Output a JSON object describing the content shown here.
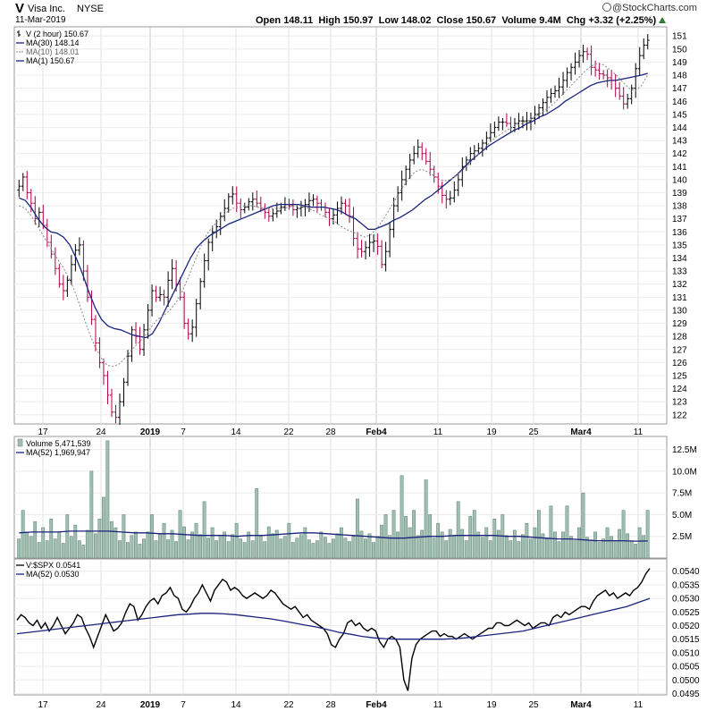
{
  "header": {
    "symbol": "V",
    "company": "Visa Inc.",
    "exchange": "NYSE",
    "date": "11-Mar-2019",
    "copyright": "@StockCharts.com",
    "open_label": "Open",
    "open": "148.11",
    "high_label": "High",
    "high": "150.97",
    "low_label": "Low",
    "low": "148.02",
    "close_label": "Close",
    "close": "150.67",
    "volume_label": "Volume",
    "volume": "9.4M",
    "chg_label": "Chg",
    "chg": "+3.32 (+2.25%)"
  },
  "colors": {
    "up": "#000000",
    "down": "#b0004a",
    "ma_main": "#1a237e",
    "ma_fast": "#888888",
    "volume_bar": "#9fbfb1",
    "volume_edge": "#5f7f72"
  },
  "chart_data": [
    {
      "type": "line",
      "panel": "price",
      "legend": [
        {
          "text": "V (2 hour) 150.67",
          "swatch": "candle"
        },
        {
          "text": "MA(30) 148.14",
          "swatch": "line-blue"
        },
        {
          "text": "MA(10) 148.01",
          "swatch": "dotted-gray"
        },
        {
          "text": "MA(1) 150.67",
          "swatch": "line-blue"
        }
      ],
      "x_tick_labels": [
        "17",
        "24",
        "2019",
        "7",
        "14",
        "22",
        "28",
        "Feb4",
        "11",
        "19",
        "25",
        "Mar4",
        "11"
      ],
      "y_tick_labels": [
        "151",
        "150",
        "149",
        "148",
        "147",
        "146",
        "145",
        "144",
        "143",
        "142",
        "141",
        "140",
        "139",
        "138",
        "137",
        "136",
        "135",
        "134",
        "133",
        "132",
        "131",
        "130",
        "129",
        "128",
        "127",
        "126",
        "125",
        "124",
        "123",
        "122"
      ],
      "ylim": [
        121.3,
        151.7
      ],
      "close_series": [
        139.5,
        140.2,
        139.0,
        138.2,
        137.0,
        137.5,
        136.5,
        135.2,
        134.3,
        133.2,
        132.0,
        131.5,
        132.3,
        133.5,
        134.6,
        135.0,
        133.0,
        131.0,
        129.3,
        127.5,
        126.0,
        125.0,
        123.5,
        122.2,
        121.8,
        123.0,
        124.5,
        126.5,
        128.5,
        128.0,
        127.0,
        128.5,
        130.0,
        131.5,
        131.0,
        131.2,
        131.0,
        132.3,
        133.2,
        132.0,
        131.0,
        129.0,
        128.2,
        128.7,
        130.5,
        132.2,
        133.8,
        135.2,
        136.0,
        136.4,
        137.2,
        137.8,
        138.7,
        138.9,
        138.2,
        137.7,
        137.9,
        138.3,
        138.5,
        138.2,
        137.8,
        137.5,
        137.2,
        137.4,
        137.6,
        137.9,
        138.1,
        138.0,
        137.7,
        137.8,
        137.9,
        138.1,
        138.4,
        138.5,
        138.2,
        137.9,
        137.5,
        137.0,
        137.3,
        137.8,
        138.2,
        138.0,
        137.2,
        135.5,
        134.7,
        134.5,
        134.8,
        135.2,
        135.3,
        134.9,
        133.5,
        134.5,
        136.2,
        138.0,
        139.0,
        140.0,
        140.8,
        141.5,
        142.0,
        142.5,
        142.0,
        141.4,
        140.8,
        140.2,
        139.5,
        138.8,
        138.5,
        138.6,
        139.2,
        140.0,
        141.0,
        141.5,
        142.0,
        142.2,
        142.4,
        142.8,
        143.2,
        143.6,
        144.0,
        144.4,
        144.4,
        144.3,
        144.0,
        144.3,
        144.5,
        144.5,
        144.5,
        144.7,
        145.0,
        145.5,
        145.9,
        146.3,
        146.6,
        146.8,
        147.1,
        147.6,
        148.2,
        148.6,
        149.0,
        149.5,
        149.8,
        149.6,
        148.6,
        148.4,
        148.1,
        148.0,
        147.8,
        147.6,
        147.0,
        146.4,
        145.8,
        146.2,
        147.0,
        148.5,
        149.5,
        150.3,
        150.67
      ],
      "ma30_series": [
        138.6,
        138.4,
        137.8,
        137.0,
        136.4,
        136.0,
        135.9,
        135.6,
        135.0,
        134.0,
        132.8,
        131.4,
        130.2,
        129.3,
        128.8,
        128.6,
        128.5,
        128.3,
        128.1,
        128.0,
        127.9,
        128.2,
        129.0,
        130.0,
        131.0,
        132.0,
        133.0,
        134.0,
        134.8,
        135.3,
        135.7,
        136.0,
        136.3,
        136.6,
        136.8,
        137.0,
        137.2,
        137.4,
        137.6,
        137.8,
        138.0,
        138.1,
        138.1,
        138.1,
        138.1,
        138.0,
        137.9,
        137.9,
        137.9,
        137.8,
        137.7,
        137.5,
        137.2,
        137.0,
        136.6,
        136.2,
        136.2,
        136.4,
        136.6,
        136.9,
        137.1,
        137.4,
        137.7,
        138.1,
        138.5,
        138.8,
        139.2,
        139.6,
        140.0,
        140.4,
        140.9,
        141.4,
        141.8,
        142.2,
        142.6,
        142.9,
        143.2,
        143.5,
        143.8,
        144.0,
        144.3,
        144.5,
        144.8,
        145.0,
        145.3,
        145.6,
        146.0,
        146.3,
        146.6,
        146.9,
        147.2,
        147.4,
        147.5,
        147.6,
        147.6,
        147.7,
        147.8,
        147.9,
        148.0,
        148.14
      ],
      "ma30_start_index": 50,
      "ma10_series": [
        138.0,
        137.8,
        137.2,
        136.4,
        135.6,
        134.8,
        134.0,
        133.3,
        132.4,
        131.3,
        129.9,
        128.5,
        127.3,
        126.4,
        125.8,
        125.7,
        125.9,
        126.4,
        127.0,
        127.5,
        128.0,
        128.7,
        129.3,
        129.6,
        130.0,
        130.6,
        131.5,
        132.6,
        133.8,
        135.0,
        135.9,
        136.5,
        137.0,
        137.5,
        137.8,
        137.9,
        138.0,
        138.0,
        137.9,
        137.8,
        137.8,
        137.8,
        137.8,
        137.9,
        138.0,
        138.0,
        137.8,
        137.6,
        137.3,
        137.1,
        136.9,
        136.5,
        136.2,
        136.0,
        135.8,
        135.6,
        135.8,
        136.3,
        137.0,
        137.8,
        138.6,
        139.4,
        140.1,
        140.6,
        140.8,
        140.6,
        140.3,
        140.0,
        139.9,
        140.1,
        140.5,
        140.9,
        141.4,
        141.9,
        142.4,
        142.9,
        143.3,
        143.6,
        143.9,
        144.1,
        144.3,
        144.5,
        144.8,
        145.1,
        145.4,
        145.8,
        146.3,
        146.8,
        147.3,
        147.8,
        148.3,
        148.7,
        148.9,
        148.8,
        148.4,
        148.0,
        147.5,
        147.0,
        146.8,
        147.2,
        148.01
      ],
      "ma10_start_index": 60
    },
    {
      "type": "bar",
      "panel": "volume",
      "legend": [
        {
          "text": "Volume 5,471,539",
          "swatch": "bar"
        },
        {
          "text": "MA(52) 1,969,947",
          "swatch": "line-blue"
        }
      ],
      "y_tick_labels": [
        "12.5M",
        "10.0M",
        "7.5M",
        "5.0M",
        "2.5M"
      ],
      "ylim": [
        0,
        14
      ],
      "values": [
        2.2,
        5.5,
        3.0,
        2.5,
        4.2,
        1.8,
        3.5,
        2.0,
        4.5,
        2.2,
        3.0,
        1.7,
        5.0,
        2.5,
        3.8,
        2.0,
        1.5,
        3.2,
        10.0,
        2.8,
        4.5,
        7.0,
        13.5,
        4.2,
        3.5,
        2.0,
        5.0,
        1.8,
        2.6,
        3.0,
        1.6,
        2.2,
        3.0,
        5.0,
        2.0,
        2.8,
        4.0,
        2.1,
        3.2,
        1.9,
        5.5,
        3.6,
        2.1,
        3.0,
        4.0,
        2.7,
        6.5,
        2.3,
        3.5,
        2.0,
        2.6,
        3.0,
        1.9,
        2.7,
        4.0,
        2.2,
        1.8,
        3.0,
        2.0,
        8.0,
        2.5,
        1.9,
        3.6,
        2.8,
        3.2,
        2.2,
        2.5,
        4.0,
        1.8,
        2.3,
        2.7,
        3.5,
        2.1,
        1.7,
        2.0,
        3.0,
        2.4,
        1.7,
        2.2,
        2.8,
        3.5,
        2.3,
        1.9,
        2.5,
        6.8,
        3.1,
        2.2,
        2.8,
        1.8,
        2.5,
        3.8,
        5.0,
        2.6,
        5.5,
        3.0,
        9.5,
        4.8,
        3.5,
        5.5,
        2.6,
        3.2,
        9.0,
        5.0,
        2.3,
        4.0,
        3.0,
        2.0,
        3.3,
        2.5,
        6.5,
        3.3,
        2.0,
        4.8,
        5.5,
        3.0,
        2.4,
        3.5,
        2.0,
        4.5,
        3.2,
        5.0,
        2.6,
        2.0,
        3.2,
        1.9,
        2.7,
        4.0,
        2.2,
        3.5,
        5.5,
        2.8,
        2.2,
        6.0,
        3.0,
        1.9,
        3.0,
        6.0,
        2.5,
        2.0,
        3.5,
        7.5,
        2.4,
        2.1,
        3.0,
        1.8,
        2.2,
        3.5,
        2.5,
        2.0,
        3.3,
        5.5,
        2.8,
        2.0,
        1.6,
        3.5,
        2.6,
        5.5
      ],
      "ma52_series": [
        2.9,
        3.0,
        3.0,
        3.0,
        3.1,
        3.1,
        3.1,
        3.1,
        3.0,
        2.9,
        2.9,
        2.8,
        2.8,
        2.7,
        2.6,
        2.6,
        2.6,
        2.5,
        2.6,
        2.6,
        2.7,
        2.8,
        2.9,
        2.9,
        2.8,
        2.7,
        2.6,
        2.5,
        2.4,
        2.3,
        2.3,
        2.4,
        2.5,
        2.5,
        2.6,
        2.6,
        2.6,
        2.6,
        2.5,
        2.5,
        2.4,
        2.3,
        2.2,
        2.2,
        2.1,
        2.0,
        2.0,
        2.0,
        1.95,
        1.97
      ]
    },
    {
      "type": "line",
      "panel": "ratio",
      "legend": [
        {
          "text": "V:$SPX 0.0541",
          "swatch": "line-black"
        },
        {
          "text": "MA(52) 0.0530",
          "swatch": "line-blue"
        }
      ],
      "y_tick_labels": [
        "0.0540",
        "0.0535",
        "0.0530",
        "0.0525",
        "0.0520",
        "0.0515",
        "0.0510",
        "0.0505",
        "0.0500",
        "0.0495"
      ],
      "ylim": [
        0.04945,
        0.05445
      ],
      "ratio_series": [
        0.0522,
        0.0524,
        0.0523,
        0.0521,
        0.052,
        0.0522,
        0.0519,
        0.0521,
        0.0518,
        0.052,
        0.0523,
        0.052,
        0.0517,
        0.0519,
        0.0521,
        0.0524,
        0.0523,
        0.0519,
        0.0516,
        0.0512,
        0.0516,
        0.052,
        0.0524,
        0.0521,
        0.0518,
        0.0519,
        0.0521,
        0.0525,
        0.0528,
        0.0527,
        0.0522,
        0.0524,
        0.0527,
        0.0529,
        0.053,
        0.0528,
        0.0531,
        0.0532,
        0.0534,
        0.0531,
        0.053,
        0.0526,
        0.0525,
        0.0527,
        0.053,
        0.0532,
        0.0535,
        0.0532,
        0.0529,
        0.0533,
        0.0535,
        0.0537,
        0.0536,
        0.0533,
        0.0534,
        0.0533,
        0.0531,
        0.053,
        0.0531,
        0.0532,
        0.0531,
        0.053,
        0.0531,
        0.0533,
        0.0532,
        0.053,
        0.0528,
        0.0527,
        0.0526,
        0.0527,
        0.0525,
        0.0523,
        0.0524,
        0.0522,
        0.0521,
        0.052,
        0.0519,
        0.0517,
        0.0513,
        0.0512,
        0.0515,
        0.0517,
        0.0521,
        0.0522,
        0.052,
        0.0521,
        0.0519,
        0.0518,
        0.0519,
        0.0518,
        0.0514,
        0.0512,
        0.0515,
        0.0516,
        0.0515,
        0.0512,
        0.05,
        0.0496,
        0.0508,
        0.0513,
        0.0515,
        0.0516,
        0.0517,
        0.0518,
        0.0518,
        0.0516,
        0.0517,
        0.0516,
        0.0516,
        0.0515,
        0.0516,
        0.0517,
        0.0516,
        0.0515,
        0.0516,
        0.0517,
        0.0518,
        0.0519,
        0.0519,
        0.0521,
        0.0521,
        0.052,
        0.052,
        0.0521,
        0.0522,
        0.0521,
        0.052,
        0.0521,
        0.0519,
        0.052,
        0.0521,
        0.0521,
        0.052,
        0.0523,
        0.0524,
        0.0523,
        0.0525,
        0.0524,
        0.0525,
        0.0526,
        0.0527,
        0.0527,
        0.0526,
        0.0529,
        0.0531,
        0.0532,
        0.0533,
        0.0531,
        0.0532,
        0.053,
        0.0531,
        0.0532,
        0.0531,
        0.0533,
        0.0534,
        0.0536,
        0.0539,
        0.0541
      ],
      "ma_series": [
        0.0517,
        0.05175,
        0.0518,
        0.05185,
        0.0519,
        0.05195,
        0.052,
        0.05205,
        0.0521,
        0.05215,
        0.0522,
        0.05225,
        0.0523,
        0.05235,
        0.0524,
        0.05242,
        0.05245,
        0.05245,
        0.05243,
        0.0524,
        0.05235,
        0.0523,
        0.05225,
        0.05218,
        0.0521,
        0.05202,
        0.05195,
        0.05185,
        0.05175,
        0.05168,
        0.0516,
        0.05155,
        0.05152,
        0.0515,
        0.0515,
        0.0515,
        0.0515,
        0.0515,
        0.05152,
        0.05155,
        0.0516,
        0.05165,
        0.0517,
        0.05175,
        0.0518,
        0.0519,
        0.052,
        0.0521,
        0.0522,
        0.0523,
        0.0524,
        0.0525,
        0.0526,
        0.0527,
        0.05285,
        0.053
      ]
    }
  ]
}
